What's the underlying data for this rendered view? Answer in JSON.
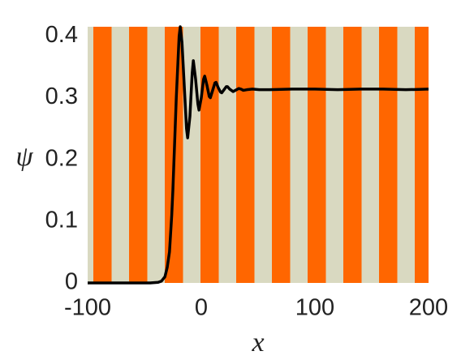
{
  "chart_data": {
    "type": "line",
    "xlabel": "x",
    "ylabel": "ψ",
    "x": [
      -100,
      -80,
      -60,
      -45,
      -38,
      -35,
      -32,
      -30,
      -28,
      -27,
      -26,
      -25,
      -24,
      -23,
      -22,
      -21,
      -20,
      -19.5,
      -18.5,
      -17,
      -15,
      -13,
      -12,
      -10,
      -8,
      -7,
      -5,
      -3,
      -2,
      0,
      2,
      3,
      5,
      7,
      8,
      10,
      12,
      13,
      15,
      17,
      18,
      20,
      22,
      23,
      25,
      28,
      31,
      33,
      35,
      37,
      40,
      45,
      51,
      60,
      80,
      100,
      120,
      140,
      160,
      180,
      200
    ],
    "series": [
      {
        "name": "psi",
        "color": "#000000",
        "values": [
          0,
          0,
          0,
          0,
          0.001,
          0.003,
          0.01,
          0.025,
          0.05,
          0.08,
          0.11,
          0.15,
          0.2,
          0.25,
          0.3,
          0.34,
          0.38,
          0.4,
          0.415,
          0.39,
          0.32,
          0.25,
          0.235,
          0.27,
          0.34,
          0.36,
          0.33,
          0.29,
          0.28,
          0.3,
          0.33,
          0.335,
          0.32,
          0.302,
          0.3,
          0.312,
          0.324,
          0.325,
          0.316,
          0.309,
          0.308,
          0.313,
          0.318,
          0.318,
          0.314,
          0.31,
          0.313,
          0.315,
          0.314,
          0.312,
          0.313,
          0.314,
          0.313,
          0.313,
          0.314,
          0.314,
          0.313,
          0.314,
          0.314,
          0.313,
          0.314
        ]
      }
    ],
    "xlim": [
      -100,
      200
    ],
    "ylim": [
      0,
      0.415
    ],
    "xticks": [
      -100,
      0,
      100,
      200
    ],
    "yticks": [
      0,
      0.1,
      0.2,
      0.3,
      0.4
    ]
  }
}
